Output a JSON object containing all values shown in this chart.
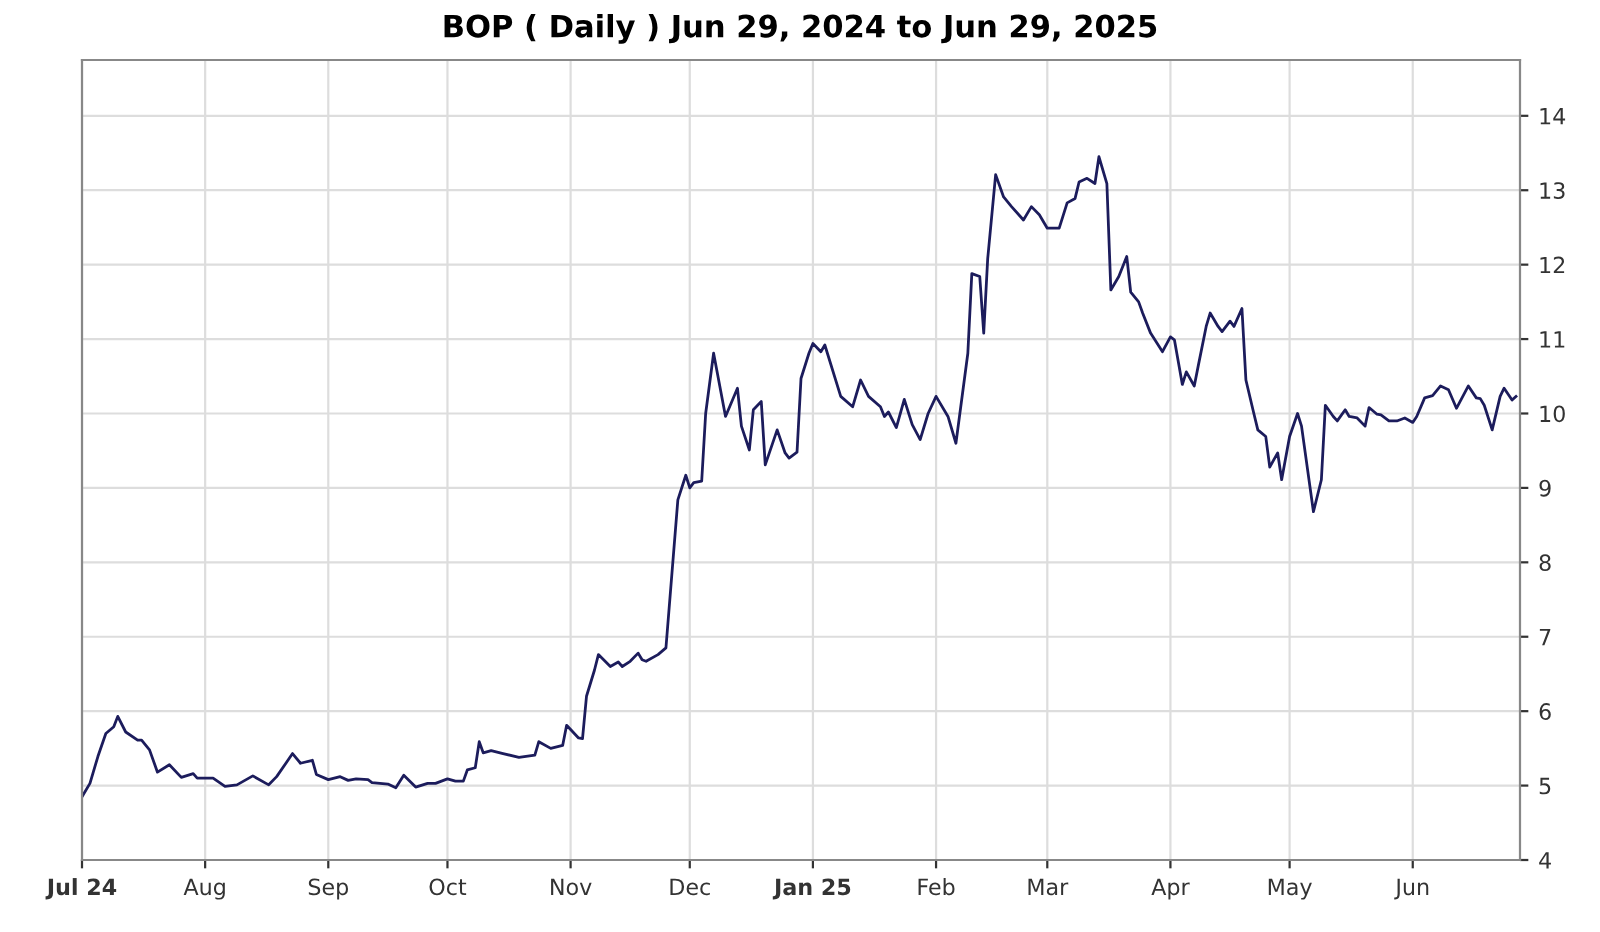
{
  "chart_data": {
    "type": "line",
    "title": "BOP ( Daily ) Jun 29, 2024 to Jun 29, 2025",
    "xlim": [
      "2024-07-01",
      "2025-06-28"
    ],
    "xticks": [
      {
        "value": "2024-07-01",
        "label": "Jul 24"
      },
      {
        "value": "2024-08-01",
        "label": "Aug"
      },
      {
        "value": "2024-09-01",
        "label": "Sep"
      },
      {
        "value": "2024-10-01",
        "label": "Oct"
      },
      {
        "value": "2024-11-01",
        "label": "Nov"
      },
      {
        "value": "2024-12-01",
        "label": "Dec"
      },
      {
        "value": "2025-01-01",
        "label": "Jan 25"
      },
      {
        "value": "2025-02-01",
        "label": "Feb"
      },
      {
        "value": "2025-03-01",
        "label": "Mar"
      },
      {
        "value": "2025-04-01",
        "label": "Apr"
      },
      {
        "value": "2025-05-01",
        "label": "May"
      },
      {
        "value": "2025-06-01",
        "label": "Jun"
      }
    ],
    "ylim": [
      4,
      14.75
    ],
    "yticks": [
      4,
      5,
      6,
      7,
      8,
      9,
      10,
      11,
      12,
      13,
      14
    ],
    "grid": true,
    "marker": "none",
    "line_style": "solid",
    "series": [
      {
        "color": "#1c1c5c",
        "x": [
          "2024-07-01",
          "2024-07-03",
          "2024-07-05",
          "2024-07-07",
          "2024-07-09",
          "2024-07-10",
          "2024-07-12",
          "2024-07-15",
          "2024-07-16",
          "2024-07-18",
          "2024-07-20",
          "2024-07-23",
          "2024-07-26",
          "2024-07-29",
          "2024-07-30",
          "2024-08-03",
          "2024-08-06",
          "2024-08-09",
          "2024-08-13",
          "2024-08-17",
          "2024-08-19",
          "2024-08-23",
          "2024-08-25",
          "2024-08-28",
          "2024-08-29",
          "2024-09-01",
          "2024-09-04",
          "2024-09-06",
          "2024-09-08",
          "2024-09-11",
          "2024-09-12",
          "2024-09-16",
          "2024-09-18",
          "2024-09-20",
          "2024-09-23",
          "2024-09-26",
          "2024-09-28",
          "2024-10-01",
          "2024-10-03",
          "2024-10-05",
          "2024-10-06",
          "2024-10-08",
          "2024-10-09",
          "2024-10-10",
          "2024-10-12",
          "2024-10-15",
          "2024-10-19",
          "2024-10-23",
          "2024-10-24",
          "2024-10-27",
          "2024-10-30",
          "2024-10-31",
          "2024-11-03",
          "2024-11-04",
          "2024-11-05",
          "2024-11-07",
          "2024-11-08",
          "2024-11-11",
          "2024-11-13",
          "2024-11-14",
          "2024-11-16",
          "2024-11-18",
          "2024-11-19",
          "2024-11-20",
          "2024-11-23",
          "2024-11-25",
          "2024-11-28",
          "2024-11-30",
          "2024-12-01",
          "2024-12-02",
          "2024-12-04",
          "2024-12-05",
          "2024-12-07",
          "2024-12-10",
          "2024-12-13",
          "2024-12-14",
          "2024-12-16",
          "2024-12-17",
          "2024-12-19",
          "2024-12-20",
          "2024-12-23",
          "2024-12-25",
          "2024-12-26",
          "2024-12-28",
          "2024-12-29",
          "2024-12-31",
          "2025-01-01",
          "2025-01-03",
          "2025-01-04",
          "2025-01-08",
          "2025-01-11",
          "2025-01-13",
          "2025-01-15",
          "2025-01-18",
          "2025-01-19",
          "2025-01-20",
          "2025-01-22",
          "2025-01-24",
          "2025-01-26",
          "2025-01-28",
          "2025-01-30",
          "2025-02-01",
          "2025-02-04",
          "2025-02-06",
          "2025-02-09",
          "2025-02-10",
          "2025-02-12",
          "2025-02-13",
          "2025-02-14",
          "2025-02-16",
          "2025-02-18",
          "2025-02-20",
          "2025-02-23",
          "2025-02-25",
          "2025-02-27",
          "2025-03-01",
          "2025-03-04",
          "2025-03-06",
          "2025-03-08",
          "2025-03-09",
          "2025-03-11",
          "2025-03-13",
          "2025-03-14",
          "2025-03-16",
          "2025-03-17",
          "2025-03-19",
          "2025-03-21",
          "2025-03-22",
          "2025-03-24",
          "2025-03-25",
          "2025-03-27",
          "2025-03-30",
          "2025-04-01",
          "2025-04-02",
          "2025-04-04",
          "2025-04-05",
          "2025-04-07",
          "2025-04-08",
          "2025-04-10",
          "2025-04-11",
          "2025-04-13",
          "2025-04-14",
          "2025-04-16",
          "2025-04-17",
          "2025-04-19",
          "2025-04-20",
          "2025-04-22",
          "2025-04-23",
          "2025-04-25",
          "2025-04-26",
          "2025-04-28",
          "2025-04-29",
          "2025-05-01",
          "2025-05-03",
          "2025-05-04",
          "2025-05-07",
          "2025-05-09",
          "2025-05-10",
          "2025-05-12",
          "2025-05-13",
          "2025-05-15",
          "2025-05-16",
          "2025-05-18",
          "2025-05-20",
          "2025-05-21",
          "2025-05-23",
          "2025-05-24",
          "2025-05-26",
          "2025-05-28",
          "2025-05-30",
          "2025-06-01",
          "2025-06-02",
          "2025-06-04",
          "2025-06-06",
          "2025-06-08",
          "2025-06-10",
          "2025-06-12",
          "2025-06-15",
          "2025-06-17",
          "2025-06-18",
          "2025-06-19",
          "2025-06-21",
          "2025-06-23",
          "2025-06-24",
          "2025-06-26",
          "2025-06-27"
        ],
        "values": [
          4.85,
          5.03,
          5.39,
          5.7,
          5.79,
          5.93,
          5.72,
          5.61,
          5.61,
          5.48,
          5.18,
          5.28,
          5.11,
          5.16,
          5.1,
          5.1,
          4.99,
          5.01,
          5.13,
          5.01,
          5.12,
          5.43,
          5.3,
          5.34,
          5.15,
          5.08,
          5.12,
          5.07,
          5.09,
          5.08,
          5.04,
          5.02,
          4.97,
          5.14,
          4.98,
          5.03,
          5.03,
          5.09,
          5.06,
          5.06,
          5.21,
          5.24,
          5.59,
          5.44,
          5.47,
          5.43,
          5.38,
          5.41,
          5.59,
          5.5,
          5.54,
          5.81,
          5.64,
          5.63,
          6.2,
          6.55,
          6.76,
          6.6,
          6.66,
          6.6,
          6.67,
          6.78,
          6.69,
          6.67,
          6.76,
          6.85,
          8.84,
          9.17,
          9.0,
          9.07,
          9.09,
          10.0,
          10.81,
          9.96,
          10.34,
          9.83,
          9.51,
          10.05,
          10.16,
          9.31,
          9.78,
          9.47,
          9.4,
          9.48,
          10.47,
          10.81,
          10.94,
          10.83,
          10.92,
          10.23,
          10.09,
          10.45,
          10.23,
          10.09,
          9.96,
          10.02,
          9.81,
          10.19,
          9.85,
          9.65,
          10.0,
          10.23,
          9.96,
          9.6,
          10.81,
          11.88,
          11.84,
          11.08,
          12.08,
          13.21,
          12.91,
          12.78,
          12.6,
          12.78,
          12.67,
          12.49,
          12.49,
          12.83,
          12.89,
          13.11,
          13.16,
          13.09,
          13.45,
          13.09,
          11.66,
          11.84,
          12.11,
          11.63,
          11.5,
          11.35,
          11.08,
          10.83,
          11.03,
          10.99,
          10.39,
          10.56,
          10.37,
          10.64,
          11.17,
          11.35,
          11.17,
          11.1,
          11.24,
          11.17,
          11.41,
          10.45,
          10.0,
          9.78,
          9.69,
          9.28,
          9.47,
          9.11,
          9.69,
          10.0,
          9.83,
          8.68,
          9.11,
          10.11,
          9.96,
          9.9,
          10.05,
          9.96,
          9.94,
          9.83,
          10.08,
          9.99,
          9.98,
          9.9,
          9.9,
          9.94,
          9.88,
          9.96,
          10.21,
          10.24,
          10.37,
          10.32,
          10.07,
          10.37,
          10.21,
          10.2,
          10.11,
          9.78,
          10.23,
          10.34,
          10.18,
          10.23
        ]
      }
    ]
  }
}
